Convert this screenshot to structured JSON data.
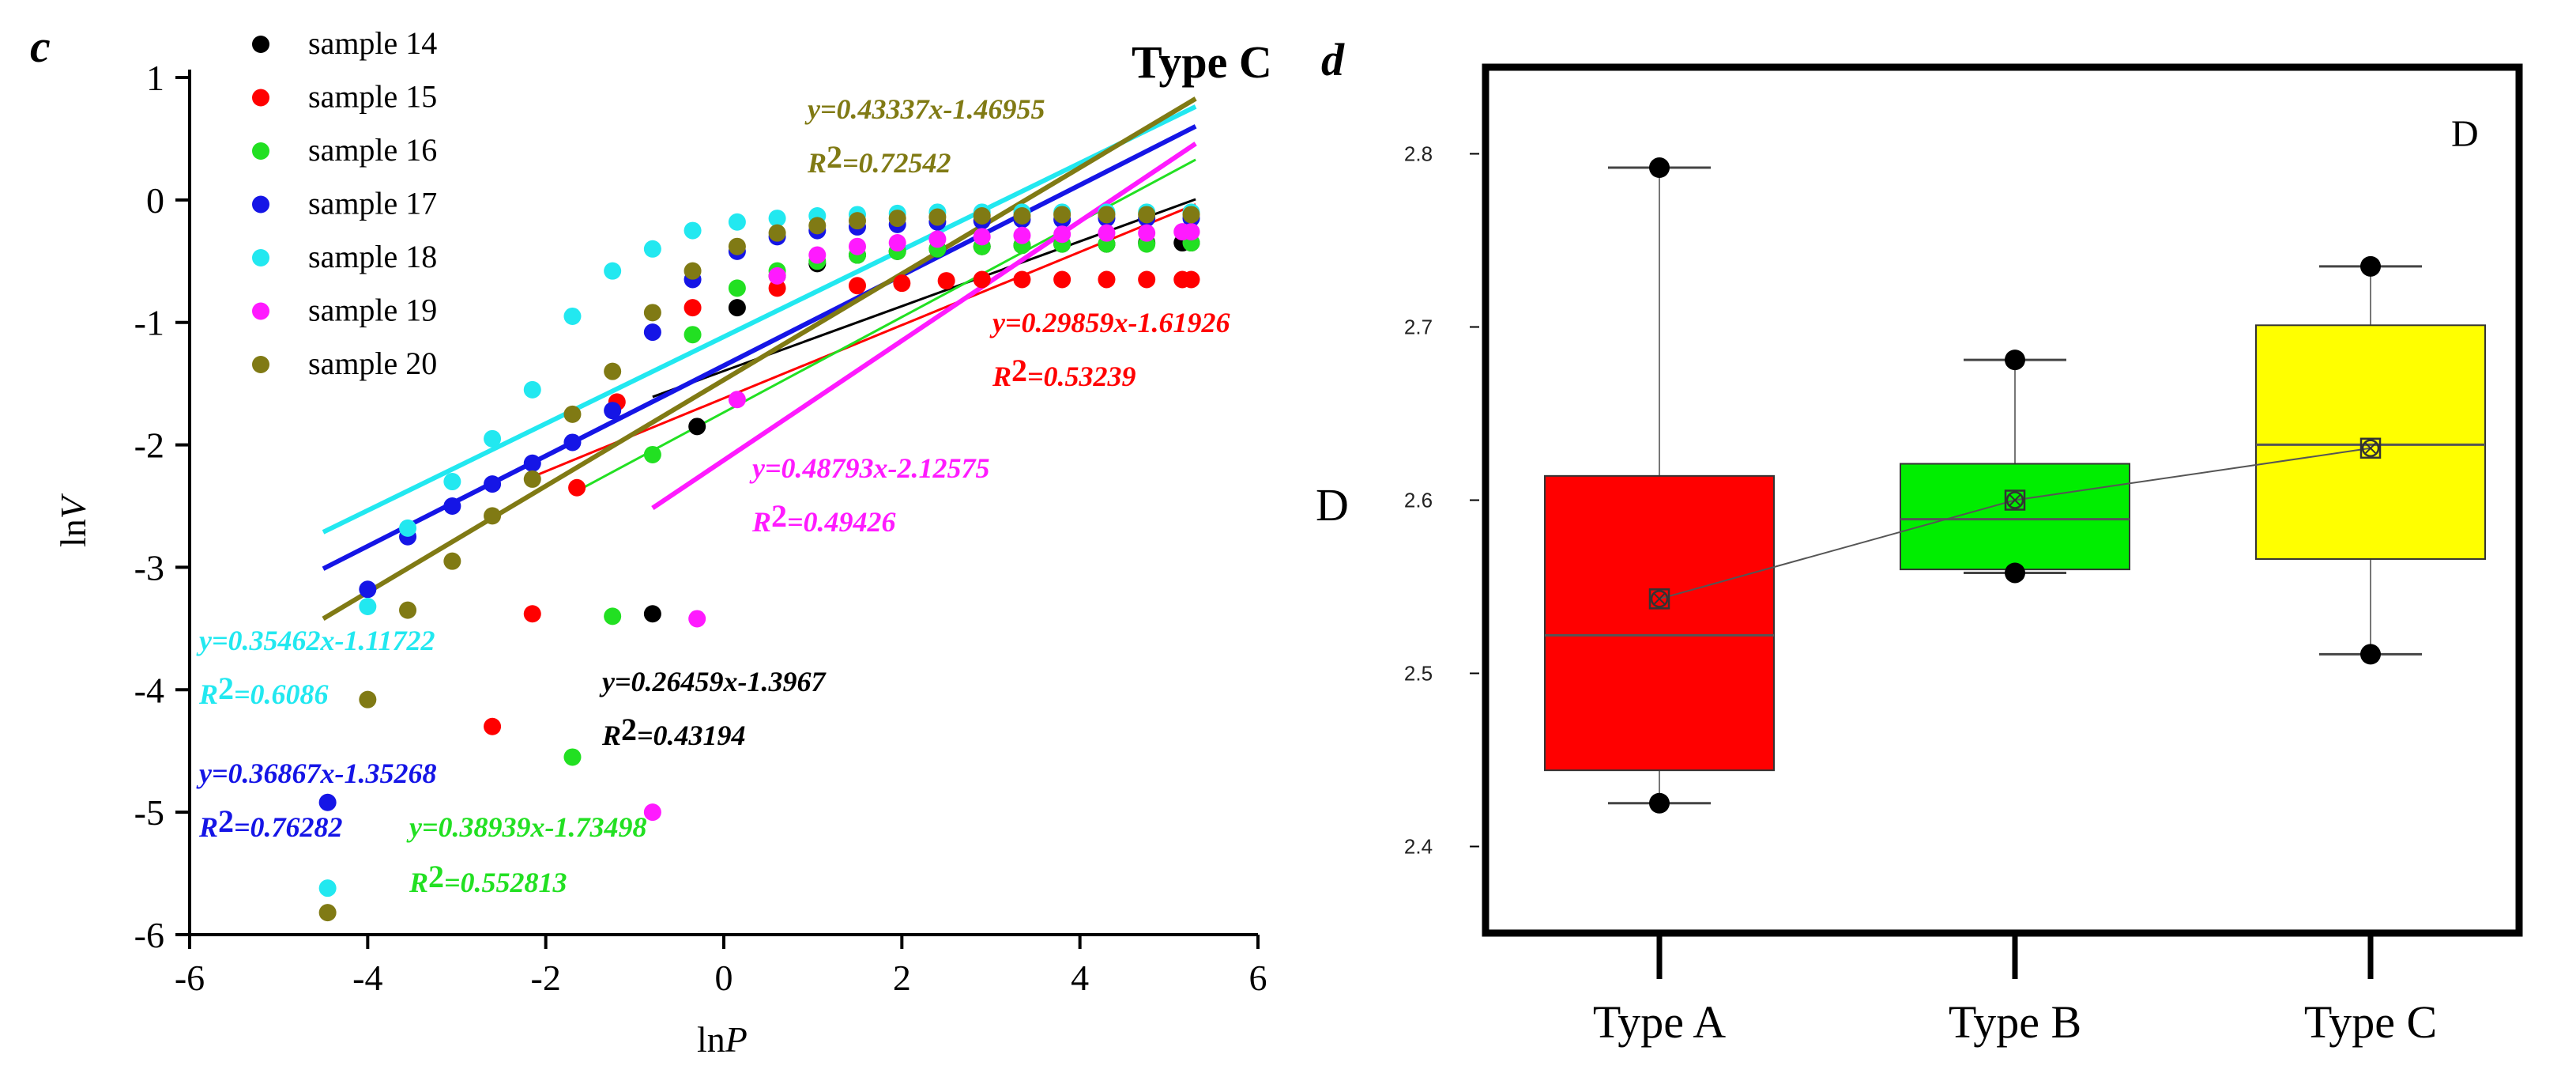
{
  "chart_data": [
    {
      "panel": "c",
      "type": "scatter",
      "title": "Type C",
      "xlabel": "lnP",
      "ylabel": "lnV",
      "xlim": [
        -6,
        6
      ],
      "ylim": [
        -6,
        1
      ],
      "xticks": [
        "-6",
        "-4",
        "-2",
        "0",
        "2",
        "4",
        "6"
      ],
      "yticks": [
        "1",
        "0",
        "-1",
        "-2",
        "-3",
        "-4",
        "-5",
        "-6"
      ],
      "grid": false,
      "legend_position": "top-left",
      "series": [
        {
          "name": "sample 14",
          "color": "#000000",
          "points": [
            [
              -0.8,
              -3.38
            ],
            [
              -0.3,
              -1.85
            ],
            [
              0.15,
              -0.88
            ],
            [
              0.6,
              -0.62
            ],
            [
              1.05,
              -0.52
            ],
            [
              1.5,
              -0.45
            ],
            [
              1.95,
              -0.42
            ],
            [
              2.4,
              -0.4
            ],
            [
              2.9,
              -0.38
            ],
            [
              3.35,
              -0.37
            ],
            [
              3.8,
              -0.36
            ],
            [
              4.3,
              -0.36
            ],
            [
              4.75,
              -0.35
            ],
            [
              5.15,
              -0.35
            ],
            [
              5.25,
              -0.35
            ]
          ],
          "fit": {
            "equation": "y=0.26459x-1.3967",
            "r2": "0.43194",
            "slope": 0.26459,
            "intercept": -1.3967,
            "x_range": [
              -0.8,
              5.3
            ]
          }
        },
        {
          "name": "sample 15",
          "color": "#ff0000",
          "points": [
            [
              -2.15,
              -3.38
            ],
            [
              -2.6,
              -4.3
            ],
            [
              -1.65,
              -2.35
            ],
            [
              -1.2,
              -1.65
            ],
            [
              -0.35,
              -0.88
            ],
            [
              0.6,
              -0.72
            ],
            [
              1.5,
              -0.7
            ],
            [
              2.0,
              -0.68
            ],
            [
              2.5,
              -0.66
            ],
            [
              2.9,
              -0.65
            ],
            [
              3.35,
              -0.65
            ],
            [
              3.8,
              -0.65
            ],
            [
              4.3,
              -0.65
            ],
            [
              4.75,
              -0.65
            ],
            [
              5.15,
              -0.65
            ],
            [
              5.25,
              -0.65
            ]
          ],
          "fit": {
            "equation": "y=0.29859x-1.61926",
            "r2": "0.53239",
            "slope": 0.29859,
            "intercept": -1.61926,
            "x_range": [
              -2.2,
              5.3
            ]
          }
        },
        {
          "name": "sample 16",
          "color": "#22e022",
          "points": [
            [
              -1.7,
              -4.55
            ],
            [
              -1.25,
              -3.4
            ],
            [
              -0.8,
              -2.08
            ],
            [
              -0.35,
              -1.1
            ],
            [
              0.15,
              -0.72
            ],
            [
              0.6,
              -0.58
            ],
            [
              1.05,
              -0.5
            ],
            [
              1.5,
              -0.45
            ],
            [
              1.95,
              -0.42
            ],
            [
              2.4,
              -0.4
            ],
            [
              2.9,
              -0.38
            ],
            [
              3.35,
              -0.37
            ],
            [
              3.8,
              -0.36
            ],
            [
              4.3,
              -0.36
            ],
            [
              4.75,
              -0.36
            ],
            [
              5.25,
              -0.35
            ]
          ],
          "fit": {
            "equation": "y=0.38939x-1.73498",
            "r2": "0.552813",
            "slope": 0.38939,
            "intercept": -1.73498,
            "x_range": [
              -1.7,
              5.3
            ]
          }
        },
        {
          "name": "sample 17",
          "color": "#1515e6",
          "points": [
            [
              -4.45,
              -4.92
            ],
            [
              -4.0,
              -3.18
            ],
            [
              -3.55,
              -2.75
            ],
            [
              -3.05,
              -2.5
            ],
            [
              -2.6,
              -2.32
            ],
            [
              -2.15,
              -2.15
            ],
            [
              -1.7,
              -1.98
            ],
            [
              -1.25,
              -1.72
            ],
            [
              -0.8,
              -1.08
            ],
            [
              -0.35,
              -0.65
            ],
            [
              0.15,
              -0.42
            ],
            [
              0.6,
              -0.3
            ],
            [
              1.05,
              -0.25
            ],
            [
              1.5,
              -0.22
            ],
            [
              1.95,
              -0.2
            ],
            [
              2.4,
              -0.18
            ],
            [
              2.9,
              -0.17
            ],
            [
              3.35,
              -0.16
            ],
            [
              3.8,
              -0.16
            ],
            [
              4.3,
              -0.15
            ],
            [
              4.75,
              -0.15
            ],
            [
              5.25,
              -0.15
            ]
          ],
          "fit": {
            "equation": "y=0.36867x-1.35268",
            "r2": "0.76282",
            "slope": 0.36867,
            "intercept": -1.35268,
            "x_range": [
              -4.5,
              5.3
            ]
          }
        },
        {
          "name": "sample 18",
          "color": "#22e8f0",
          "points": [
            [
              -4.45,
              -5.62
            ],
            [
              -4.0,
              -3.32
            ],
            [
              -3.55,
              -2.68
            ],
            [
              -3.05,
              -2.3
            ],
            [
              -2.6,
              -1.95
            ],
            [
              -2.15,
              -1.55
            ],
            [
              -1.7,
              -0.95
            ],
            [
              -1.25,
              -0.58
            ],
            [
              -0.8,
              -0.4
            ],
            [
              -0.35,
              -0.25
            ],
            [
              0.15,
              -0.18
            ],
            [
              0.6,
              -0.15
            ],
            [
              1.05,
              -0.13
            ],
            [
              1.5,
              -0.12
            ],
            [
              1.95,
              -0.11
            ],
            [
              2.4,
              -0.1
            ],
            [
              2.9,
              -0.1
            ],
            [
              3.35,
              -0.1
            ],
            [
              3.8,
              -0.1
            ],
            [
              4.3,
              -0.1
            ],
            [
              4.75,
              -0.1
            ],
            [
              5.25,
              -0.1
            ]
          ],
          "fit": {
            "equation": "y=0.35462x-1.11722",
            "r2": "0.6086",
            "slope": 0.35462,
            "intercept": -1.11722,
            "x_range": [
              -4.5,
              5.3
            ]
          }
        },
        {
          "name": "sample 19",
          "color": "#ff1aff",
          "points": [
            [
              -0.8,
              -5.0
            ],
            [
              -0.3,
              -3.42
            ],
            [
              0.15,
              -1.63
            ],
            [
              0.6,
              -0.62
            ],
            [
              1.05,
              -0.45
            ],
            [
              1.5,
              -0.38
            ],
            [
              1.95,
              -0.35
            ],
            [
              2.4,
              -0.32
            ],
            [
              2.9,
              -0.3
            ],
            [
              3.35,
              -0.29
            ],
            [
              3.8,
              -0.28
            ],
            [
              4.3,
              -0.27
            ],
            [
              4.75,
              -0.27
            ],
            [
              5.15,
              -0.26
            ],
            [
              5.25,
              -0.26
            ]
          ],
          "fit": {
            "equation": "y=0.48793x-2.12575",
            "r2": "0.49426",
            "slope": 0.48793,
            "intercept": -2.12575,
            "x_range": [
              -0.8,
              5.3
            ]
          }
        },
        {
          "name": "sample 20",
          "color": "#807a14",
          "points": [
            [
              -4.45,
              -5.82
            ],
            [
              -4.0,
              -4.08
            ],
            [
              -3.55,
              -3.35
            ],
            [
              -3.05,
              -2.95
            ],
            [
              -2.6,
              -2.58
            ],
            [
              -2.15,
              -2.28
            ],
            [
              -1.7,
              -1.75
            ],
            [
              -1.25,
              -1.4
            ],
            [
              -0.8,
              -0.92
            ],
            [
              -0.35,
              -0.58
            ],
            [
              0.15,
              -0.38
            ],
            [
              0.6,
              -0.27
            ],
            [
              1.05,
              -0.21
            ],
            [
              1.5,
              -0.17
            ],
            [
              1.95,
              -0.15
            ],
            [
              2.4,
              -0.14
            ],
            [
              2.9,
              -0.13
            ],
            [
              3.35,
              -0.13
            ],
            [
              3.8,
              -0.12
            ],
            [
              4.3,
              -0.12
            ],
            [
              4.75,
              -0.12
            ],
            [
              5.25,
              -0.12
            ]
          ],
          "fit": {
            "equation": "y=0.43337x-1.46955",
            "r2": "0.72542",
            "slope": 0.43337,
            "intercept": -1.46955,
            "x_range": [
              -4.5,
              5.3
            ]
          }
        }
      ]
    },
    {
      "panel": "d",
      "type": "box",
      "ylabel": "D",
      "inner_label": "D",
      "categories": [
        "Type A",
        "Type B",
        "Type C"
      ],
      "yticks": [
        "2.4",
        "2.5",
        "2.6",
        "2.7",
        "2.8"
      ],
      "ylim": [
        2.35,
        2.85
      ],
      "boxes": [
        {
          "category": "Type A",
          "color": "#ff0000",
          "min": 2.425,
          "q1": 2.444,
          "median": 2.522,
          "q3": 2.614,
          "max": 2.792,
          "mean": 2.543
        },
        {
          "category": "Type B",
          "color": "#00ee00",
          "min": 2.558,
          "q1": 2.56,
          "median": 2.589,
          "q3": 2.621,
          "max": 2.681,
          "mean": 2.6
        },
        {
          "category": "Type C",
          "color": "#ffff00",
          "min": 2.511,
          "q1": 2.566,
          "median": 2.632,
          "q3": 2.701,
          "max": 2.735,
          "mean": 2.63
        }
      ]
    }
  ],
  "labels": {
    "panel_c": "c",
    "panel_d": "d",
    "r2_prefix": "R",
    "r2_sup": "2",
    "r2_eq": "="
  }
}
